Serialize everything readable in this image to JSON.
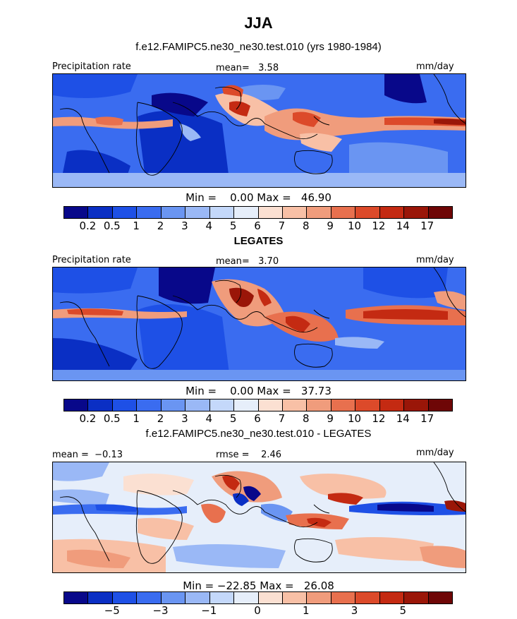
{
  "header": {
    "title": "JJA",
    "subtitle": "f.e12.FAMIPC5.ne30_ne30.test.010 (yrs 1980-1984)"
  },
  "colors": {
    "precip_scale": [
      "#08088a",
      "#0a2fc4",
      "#1e50e6",
      "#3a6cf0",
      "#6a95f2",
      "#9ab8f6",
      "#c4d8fa",
      "#e6eefa",
      "#fbe0d2",
      "#f8c0a6",
      "#f09c7c",
      "#e8704e",
      "#dc4a2a",
      "#c42a12",
      "#9a1608",
      "#6e0606"
    ],
    "diff_scale": [
      "#08088a",
      "#0a2fc4",
      "#1e50e6",
      "#3a6cf0",
      "#6a95f2",
      "#9ab8f6",
      "#c4d8fa",
      "#e6eefa",
      "#fbe0d2",
      "#f8c0a6",
      "#f09c7c",
      "#e8704e",
      "#dc4a2a",
      "#c42a12",
      "#9a1608",
      "#6e0606"
    ]
  },
  "panels": [
    {
      "corner_left": "Precipitation rate",
      "corner_center": "mean=   3.58",
      "corner_right": "mm/day",
      "minmax": "Min =    0.00 Max =   46.90",
      "tick_labels": [
        "0.2",
        "0.5",
        "1",
        "2",
        "3",
        "4",
        "5",
        "6",
        "7",
        "8",
        "9",
        "10",
        "12",
        "14",
        "17"
      ]
    },
    {
      "title": "LEGATES",
      "corner_left": "Precipitation rate",
      "corner_center": "mean=   3.70",
      "corner_right": "mm/day",
      "minmax": "Min =    0.00 Max =   37.73",
      "tick_labels": [
        "0.2",
        "0.5",
        "1",
        "2",
        "3",
        "4",
        "5",
        "6",
        "7",
        "8",
        "9",
        "10",
        "12",
        "14",
        "17"
      ]
    },
    {
      "title": "f.e12.FAMIPC5.ne30_ne30.test.010 - LEGATES",
      "corner_left": "mean =  −0.13",
      "corner_center": "rmse =    2.46",
      "corner_right": "mm/day",
      "minmax": "Min = −22.85 Max =   26.08",
      "tick_labels": [
        "−5",
        "−3",
        "−1",
        "0",
        "1",
        "3",
        "5"
      ]
    }
  ]
}
